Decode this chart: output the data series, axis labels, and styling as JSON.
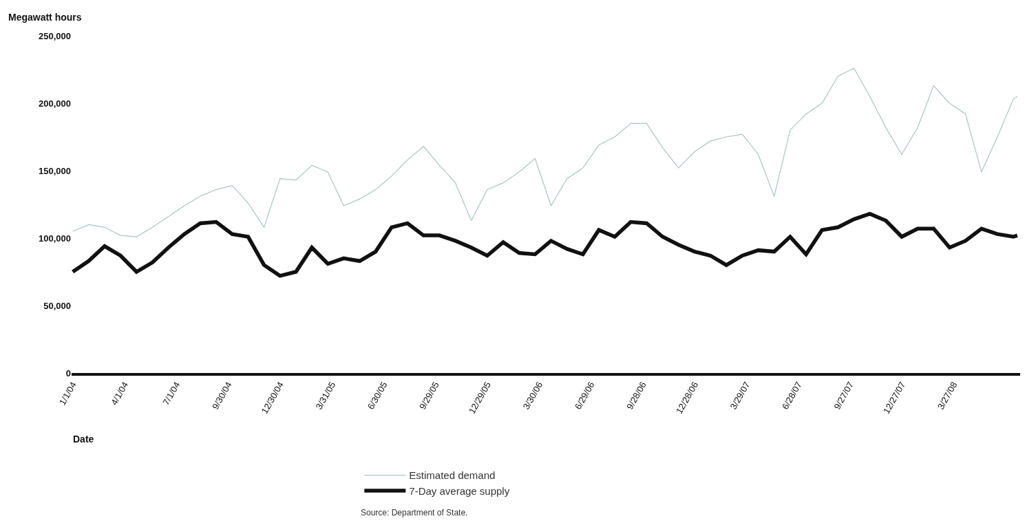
{
  "chart_data": {
    "type": "line",
    "ylabel": "Megawatt hours",
    "xlabel": "Date",
    "annotations": [
      "Source: Department of State."
    ],
    "x": [
      "2004-01-01",
      "2004-01-29",
      "2004-02-26",
      "2004-03-25",
      "2004-04-22",
      "2004-05-20",
      "2004-06-17",
      "2004-07-15",
      "2004-08-12",
      "2004-09-09",
      "2004-10-07",
      "2004-11-04",
      "2004-12-02",
      "2004-12-30",
      "2005-01-27",
      "2005-02-24",
      "2005-03-24",
      "2005-04-21",
      "2005-05-19",
      "2005-06-16",
      "2005-07-14",
      "2005-08-11",
      "2005-09-08",
      "2005-10-06",
      "2005-11-03",
      "2005-12-01",
      "2005-12-29",
      "2006-01-26",
      "2006-02-23",
      "2006-03-23",
      "2006-04-20",
      "2006-05-18",
      "2006-06-15",
      "2006-07-13",
      "2006-08-10",
      "2006-09-07",
      "2006-10-05",
      "2006-11-02",
      "2006-11-30",
      "2006-12-28",
      "2007-01-25",
      "2007-02-22",
      "2007-03-22",
      "2007-04-19",
      "2007-05-17",
      "2007-06-14",
      "2007-07-12",
      "2007-08-09",
      "2007-09-06",
      "2007-10-04",
      "2007-11-01",
      "2007-11-29",
      "2007-12-27",
      "2008-01-24",
      "2008-02-21",
      "2008-03-20",
      "2008-04-17",
      "2008-05-15",
      "2008-06-12",
      "2008-07-10",
      "2008-07-17"
    ],
    "series": [
      {
        "name": "Estimated demand",
        "color": "#a9c4c4",
        "values": [
          105000,
          110000,
          108000,
          102000,
          101000,
          108000,
          116000,
          124000,
          131000,
          136000,
          139000,
          126000,
          108000,
          144000,
          143000,
          154000,
          149000,
          124000,
          129000,
          136000,
          146000,
          158000,
          168000,
          154000,
          141000,
          113000,
          136000,
          141000,
          149000,
          159000,
          124000,
          144000,
          152000,
          169000,
          175000,
          185000,
          185000,
          167000,
          152000,
          164000,
          172000,
          175000,
          177000,
          162000,
          131000,
          180000,
          192000,
          200000,
          220000,
          226000,
          205000,
          182000,
          162000,
          182000,
          213000,
          200000,
          192000,
          149000,
          175000,
          203000,
          205000
        ]
      },
      {
        "name": "7-Day average supply",
        "color": "#111111",
        "values": [
          75000,
          83000,
          94000,
          87000,
          75000,
          82000,
          93000,
          103000,
          111000,
          112000,
          103000,
          101000,
          80000,
          72000,
          75000,
          93000,
          81000,
          85000,
          83000,
          90000,
          108000,
          111000,
          102000,
          102000,
          98000,
          93000,
          87000,
          97000,
          89000,
          88000,
          98000,
          92000,
          88000,
          106000,
          101000,
          112000,
          111000,
          101000,
          95000,
          90000,
          87000,
          80000,
          87000,
          91000,
          90000,
          101000,
          88000,
          106000,
          108000,
          114000,
          118000,
          113000,
          101000,
          107000,
          107000,
          93000,
          98000,
          107000,
          103000,
          101000,
          102000
        ]
      }
    ],
    "xlim": [
      "2003-12-30",
      "2008-07-22"
    ],
    "xticks": [
      {
        "value": "2004-01-01",
        "label": "1/1/04"
      },
      {
        "value": "2004-04-01",
        "label": "4/1/04"
      },
      {
        "value": "2004-07-01",
        "label": "7/1/04"
      },
      {
        "value": "2004-09-30",
        "label": "9/30/04"
      },
      {
        "value": "2004-12-30",
        "label": "12/30/04"
      },
      {
        "value": "2005-03-31",
        "label": "3/31/05"
      },
      {
        "value": "2005-06-30",
        "label": "6/30/05"
      },
      {
        "value": "2005-09-29",
        "label": "9/29/05"
      },
      {
        "value": "2005-12-29",
        "label": "12/29/05"
      },
      {
        "value": "2006-03-30",
        "label": "3/30/06"
      },
      {
        "value": "2006-06-29",
        "label": "6/29/06"
      },
      {
        "value": "2006-09-28",
        "label": "9/28/06"
      },
      {
        "value": "2006-12-28",
        "label": "12/28/06"
      },
      {
        "value": "2007-03-29",
        "label": "3/29/07"
      },
      {
        "value": "2007-06-28",
        "label": "6/28/07"
      },
      {
        "value": "2007-09-27",
        "label": "9/27/07"
      },
      {
        "value": "2007-12-27",
        "label": "12/27/07"
      },
      {
        "value": "2008-03-27",
        "label": "3/27/08"
      }
    ],
    "ylim": [
      0,
      250000
    ],
    "yticks": [
      {
        "value": 0,
        "label": "0"
      },
      {
        "value": 50000,
        "label": "50,000"
      },
      {
        "value": 100000,
        "label": "100,000"
      },
      {
        "value": 150000,
        "label": "150,000"
      },
      {
        "value": 200000,
        "label": "200,000"
      },
      {
        "value": 250000,
        "label": "250,000"
      }
    ],
    "legend": "bottom",
    "marker": "none",
    "line_style": "solid"
  }
}
